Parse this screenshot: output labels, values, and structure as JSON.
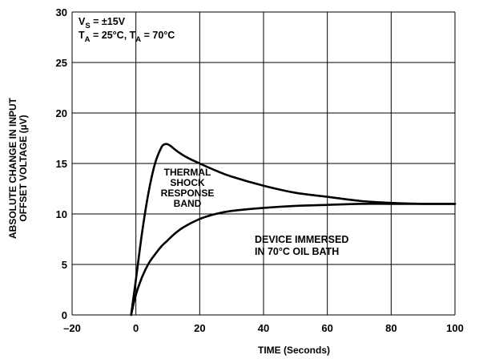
{
  "chart_data": {
    "type": "line",
    "xlabel": "TIME (Seconds)",
    "ylabel_lines": [
      "ABSOLUTE CHANGE IN INPUT",
      "OFFSET VOLTAGE (µV)"
    ],
    "xlim": [
      -20,
      100
    ],
    "ylim": [
      0,
      30
    ],
    "x_ticks": [
      -20,
      0,
      20,
      40,
      60,
      80,
      100
    ],
    "x_tick_labels": [
      "–20",
      "0",
      "20",
      "40",
      "60",
      "80",
      "100"
    ],
    "y_ticks": [
      0,
      5,
      10,
      15,
      20,
      25,
      30
    ],
    "y_tick_labels": [
      "0",
      "5",
      "10",
      "15",
      "20",
      "25",
      "30"
    ],
    "grid": true,
    "conditions": {
      "vs_sym": "V",
      "vs_sub": "S",
      "vs_val": " = ±15V",
      "ta1_sym": "T",
      "ta1_sub": "A",
      "ta1_val": " = 25°C, ",
      "ta2_sym": "T",
      "ta2_sub": "A",
      "ta2_val": " = 70°C"
    },
    "band_label_lines": [
      "THERMAL",
      "SHOCK",
      "RESPONSE",
      "BAND"
    ],
    "device_label_lines": [
      "DEVICE IMMERSED",
      "IN 70°C OIL BATH"
    ],
    "series": [
      {
        "x": [
          -1.5,
          0,
          2,
          4,
          6,
          8,
          9,
          10,
          11,
          13,
          16,
          20,
          25,
          30,
          40,
          50,
          60,
          70,
          80,
          90,
          100
        ],
        "y": [
          0,
          3.5,
          8.3,
          12.2,
          15.0,
          16.6,
          16.9,
          16.9,
          16.7,
          16.2,
          15.6,
          15.0,
          14.3,
          13.7,
          12.8,
          12.1,
          11.7,
          11.3,
          11.1,
          11.0,
          11.0
        ]
      },
      {
        "x": [
          -1.5,
          0,
          2,
          4,
          6,
          8,
          10,
          12,
          15,
          20,
          25,
          30,
          40,
          50,
          60,
          70,
          80,
          90,
          100
        ],
        "y": [
          0,
          2.0,
          3.8,
          5.1,
          6.0,
          6.8,
          7.4,
          8.0,
          8.7,
          9.5,
          10.0,
          10.3,
          10.6,
          10.8,
          10.9,
          11.0,
          11.0,
          11.0,
          11.0
        ]
      }
    ]
  }
}
